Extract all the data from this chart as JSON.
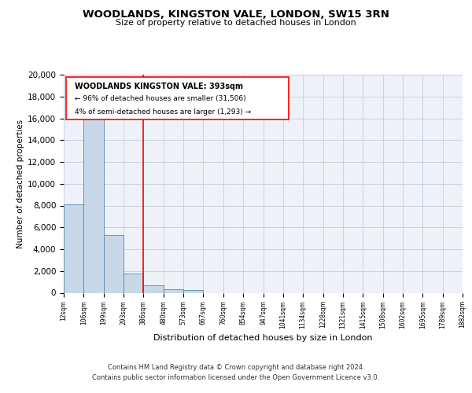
{
  "title": "WOODLANDS, KINGSTON VALE, LONDON, SW15 3RN",
  "subtitle": "Size of property relative to detached houses in London",
  "xlabel": "Distribution of detached houses by size in London",
  "ylabel": "Number of detached properties",
  "bin_labels": [
    "12sqm",
    "106sqm",
    "199sqm",
    "293sqm",
    "386sqm",
    "480sqm",
    "573sqm",
    "667sqm",
    "760sqm",
    "854sqm",
    "947sqm",
    "1041sqm",
    "1134sqm",
    "1228sqm",
    "1321sqm",
    "1415sqm",
    "1508sqm",
    "1602sqm",
    "1695sqm",
    "1789sqm",
    "1882sqm"
  ],
  "bar_heights": [
    8100,
    16500,
    5300,
    1800,
    700,
    300,
    250,
    0,
    0,
    0,
    0,
    0,
    0,
    0,
    0,
    0,
    0,
    0,
    0,
    0
  ],
  "bar_color": "#c8d8e8",
  "bar_edge_color": "#5588aa",
  "red_line_x": 4,
  "annotation_title": "WOODLANDS KINGSTON VALE: 393sqm",
  "annotation_line1": "← 96% of detached houses are smaller (31,506)",
  "annotation_line2": "4% of semi-detached houses are larger (1,293) →",
  "ylim": [
    0,
    20000
  ],
  "yticks": [
    0,
    2000,
    4000,
    6000,
    8000,
    10000,
    12000,
    14000,
    16000,
    18000,
    20000
  ],
  "footer_line1": "Contains HM Land Registry data © Crown copyright and database right 2024.",
  "footer_line2": "Contains public sector information licensed under the Open Government Licence v3.0.",
  "plot_background": "#eef2f8"
}
